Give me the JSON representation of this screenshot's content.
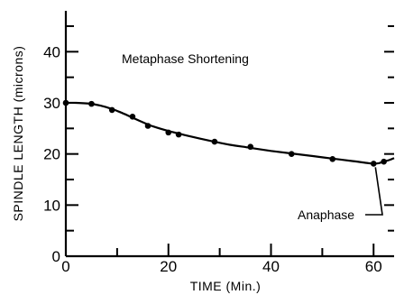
{
  "chart_data": {
    "type": "line",
    "title": "",
    "annotations": [
      "Metaphase Shortening",
      "Anaphase"
    ],
    "xlabel": "TIME (Min.)",
    "ylabel": "SPINDLE LENGTH (microns)",
    "xlim": [
      0,
      64
    ],
    "ylim": [
      0,
      48
    ],
    "x_ticks": [
      0,
      20,
      40,
      60
    ],
    "y_ticks": [
      0,
      10,
      20,
      30,
      40
    ],
    "grid": false,
    "series": [
      {
        "x": [
          0,
          5,
          9,
          13,
          16,
          20,
          22,
          29,
          36,
          44,
          52,
          60,
          62
        ],
        "y": [
          30,
          29.8,
          28.6,
          27.3,
          25.5,
          24.2,
          23.8,
          22.4,
          21.4,
          20.0,
          19.0,
          18.1,
          18.5
        ]
      }
    ],
    "curve": {
      "x": [
        0,
        2,
        5,
        7,
        9,
        11,
        13,
        15,
        17,
        20,
        24,
        28,
        32,
        36,
        40,
        44,
        48,
        52,
        56,
        59,
        60,
        61,
        62,
        63,
        64
      ],
      "y": [
        30,
        30,
        29.8,
        29.4,
        28.8,
        28.0,
        27.1,
        26.2,
        25.4,
        24.5,
        23.5,
        22.6,
        21.8,
        21.2,
        20.6,
        20.1,
        19.6,
        19.1,
        18.6,
        18.2,
        18.1,
        18.2,
        18.5,
        18.8,
        19.2
      ]
    }
  }
}
